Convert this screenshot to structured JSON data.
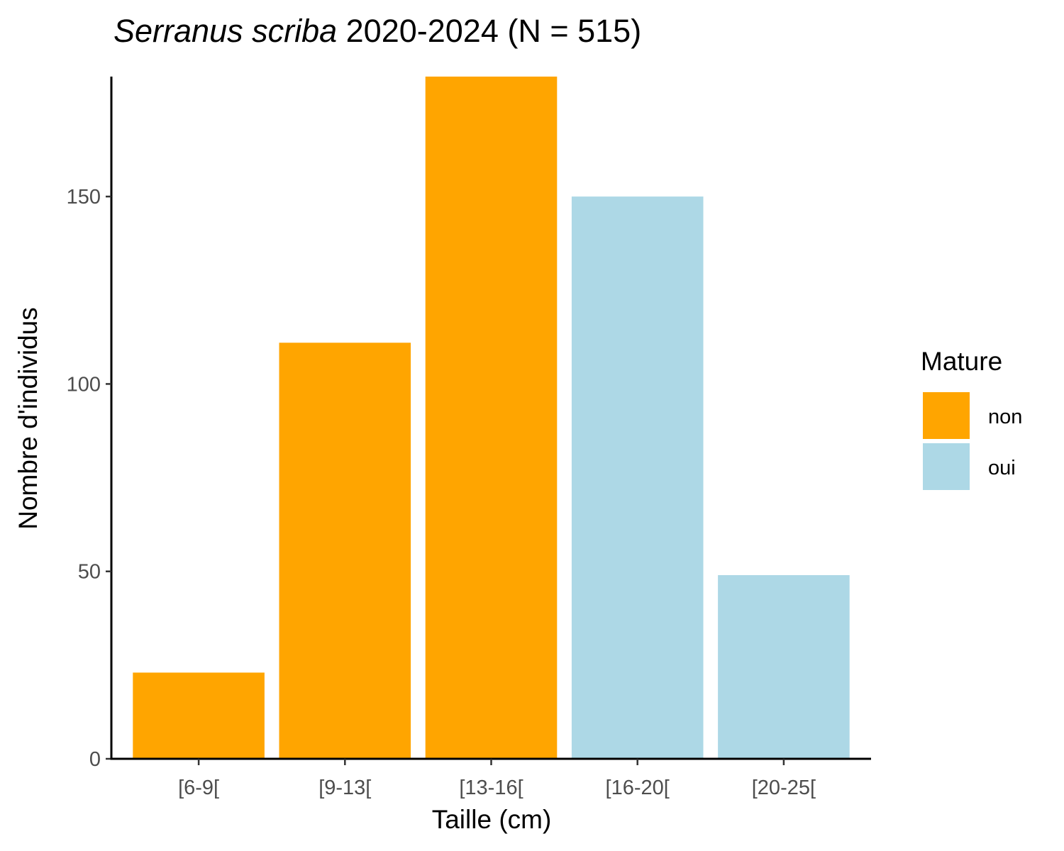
{
  "chart_data": {
    "type": "bar",
    "title_italic": "Serranus scriba",
    "title_rest": " 2020-2024 (N = 515)",
    "xlabel": "Taille (cm)",
    "ylabel": "Nombre d'individus",
    "categories": [
      "[6-9[",
      "[9-13[",
      "[13-16[",
      "[16-20[",
      "[20-25["
    ],
    "values": [
      23,
      111,
      182,
      150,
      49
    ],
    "groups": [
      "non",
      "non",
      "non",
      "oui",
      "oui"
    ],
    "ylim": [
      0,
      182
    ],
    "yticks": [
      0,
      50,
      100,
      150
    ],
    "grid": false,
    "legend": {
      "title": "Mature",
      "placement": "right",
      "items": [
        {
          "label": "non",
          "color": "#FFA500"
        },
        {
          "label": "oui",
          "color": "#ADD8E6"
        }
      ]
    }
  }
}
